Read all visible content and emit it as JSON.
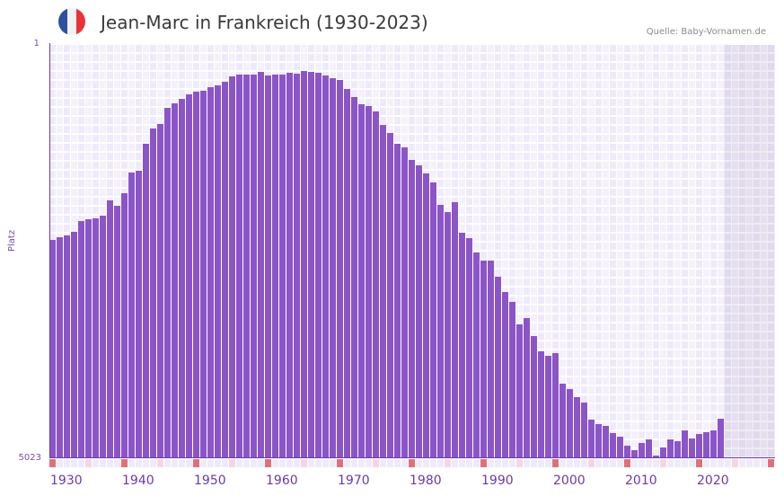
{
  "header": {
    "title": "Jean-Marc in Frankreich (1930-2023)",
    "source": "Quelle: Baby-Vornamen.de",
    "flag_colors": [
      "#2d4f9e",
      "#f2f2f4",
      "#e8333a"
    ]
  },
  "axis": {
    "y_top_label": "1",
    "y_bottom_label": "5023",
    "y_title": "Platz",
    "x_labels": [
      "1930",
      "1940",
      "1950",
      "1960",
      "1970",
      "1980",
      "1990",
      "2000",
      "2010",
      "2020"
    ]
  },
  "colors": {
    "bar": "#8b55c8",
    "axis": "#6a3aa8",
    "grid_a": "#efeafa",
    "grid_b": "#f4f1fc",
    "tick_major": "#e07078",
    "tick_minor": "#f5d6de",
    "tick_base": "#efeaf8"
  },
  "chart_data": {
    "type": "bar",
    "title": "Jean-Marc in Frankreich (1930-2023)",
    "xlabel": "",
    "ylabel": "Platz",
    "ylim": [
      5023,
      1
    ],
    "y_inverted": true,
    "grid": true,
    "x_ticks": [
      "1930",
      "1940",
      "1950",
      "1960",
      "1970",
      "1980",
      "1990",
      "2000",
      "2010",
      "2020"
    ],
    "x_range": [
      1930,
      2030
    ],
    "shaded_future_from": 2024,
    "categories": [
      1930,
      1931,
      1932,
      1933,
      1934,
      1935,
      1936,
      1937,
      1938,
      1939,
      1940,
      1941,
      1942,
      1943,
      1944,
      1945,
      1946,
      1947,
      1948,
      1949,
      1950,
      1951,
      1952,
      1953,
      1954,
      1955,
      1956,
      1957,
      1958,
      1959,
      1960,
      1961,
      1962,
      1963,
      1964,
      1965,
      1966,
      1967,
      1968,
      1969,
      1970,
      1971,
      1972,
      1973,
      1974,
      1975,
      1976,
      1977,
      1978,
      1979,
      1980,
      1981,
      1982,
      1983,
      1984,
      1985,
      1986,
      1987,
      1988,
      1989,
      1990,
      1991,
      1992,
      1993,
      1994,
      1995,
      1996,
      1997,
      1998,
      1999,
      2000,
      2001,
      2002,
      2003,
      2004,
      2005,
      2006,
      2007,
      2008,
      2009,
      2010,
      2011,
      2012,
      2013,
      2014,
      2015,
      2016,
      2017,
      2018,
      2019,
      2020,
      2021,
      2022,
      2023
    ],
    "series": [
      {
        "name": "Platz (Rang)",
        "values": [
          2370,
          2338,
          2316,
          2272,
          2141,
          2119,
          2108,
          2075,
          1890,
          1955,
          1802,
          1551,
          1529,
          1202,
          1016,
          962,
          765,
          711,
          656,
          601,
          569,
          558,
          514,
          492,
          449,
          383,
          361,
          361,
          361,
          329,
          372,
          361,
          361,
          339,
          350,
          318,
          329,
          339,
          372,
          405,
          427,
          536,
          634,
          722,
          743,
          809,
          973,
          1071,
          1202,
          1246,
          1398,
          1464,
          1562,
          1671,
          1944,
          2032,
          1912,
          2283,
          2348,
          2523,
          2621,
          2621,
          2818,
          3003,
          3123,
          3396,
          3320,
          3538,
          3724,
          3778,
          3746,
          4117,
          4182,
          4281,
          4346,
          4554,
          4608,
          4630,
          4717,
          4761,
          4870,
          4925,
          4838,
          4794,
          4990,
          4892,
          4794,
          4816,
          4685,
          4783,
          4728,
          4706,
          4685,
          4543
        ]
      }
    ]
  }
}
